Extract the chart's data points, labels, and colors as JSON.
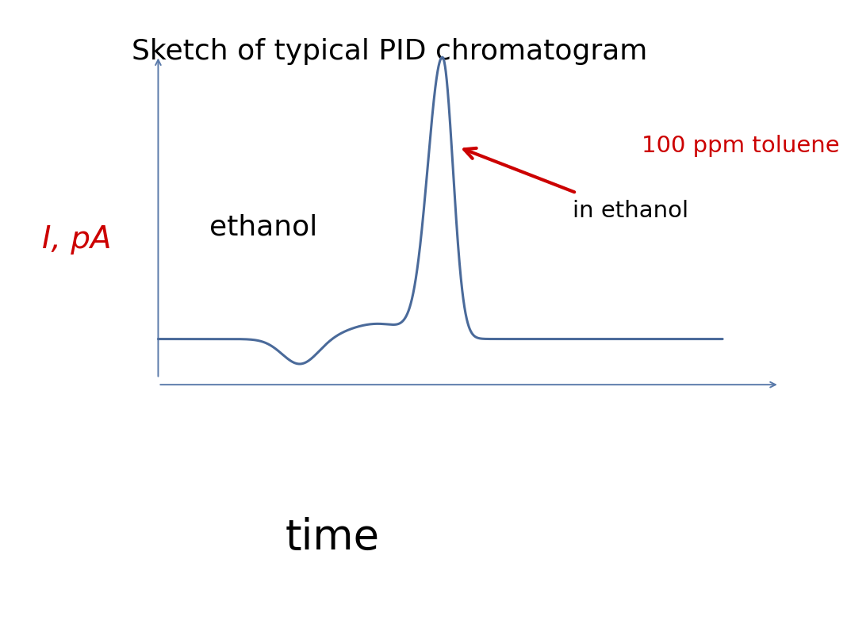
{
  "title": "Sketch of typical PID chromatogram",
  "title_fontsize": 26,
  "title_color": "#000000",
  "ylabel": "I, pA",
  "ylabel_color": "#cc0000",
  "ylabel_fontsize": 28,
  "xlabel": "time",
  "xlabel_fontsize": 38,
  "xlabel_color": "#000000",
  "background_color": "#ffffff",
  "line_color": "#4a6a9a",
  "line_width": 2.2,
  "annotation_toluene_line1": "100 ppm toluene",
  "annotation_toluene_line2": "in ethanol",
  "annotation_toluene_color": "#cc0000",
  "annotation_toluene_fontsize": 21,
  "annotation_ethanol": "ethanol",
  "annotation_ethanol_fontsize": 26,
  "annotation_ethanol_color": "#000000",
  "axis_color": "#5a7aaa"
}
